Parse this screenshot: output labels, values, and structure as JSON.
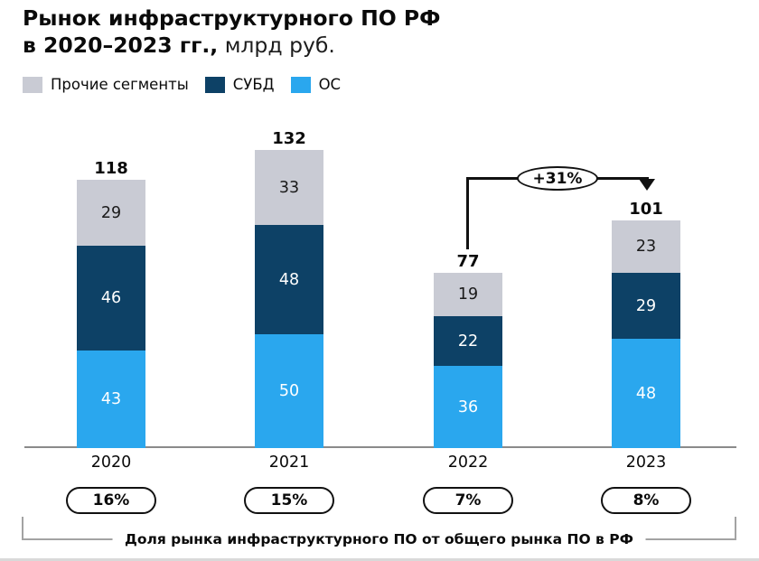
{
  "title": {
    "line1": "Рынок инфраструктурного ПО РФ",
    "line2_bold": "в 2020–2023 гг.,",
    "line2_rest": " млрд руб."
  },
  "legend": {
    "items": [
      {
        "label": "Прочие сегменты",
        "color": "#c9cbd4"
      },
      {
        "label": "СУБД",
        "color": "#0d4166"
      },
      {
        "label": "ОС",
        "color": "#2aa7ee"
      }
    ]
  },
  "chart_data": {
    "type": "bar",
    "stacked": true,
    "title": "Рынок инфраструктурного ПО РФ в 2020–2023 гг., млрд руб.",
    "unit": "млрд руб.",
    "categories": [
      "2020",
      "2021",
      "2022",
      "2023"
    ],
    "series": [
      {
        "name": "ОС",
        "color": "#2aa7ee",
        "text_color": "#ffffff",
        "values": [
          43,
          50,
          36,
          48
        ]
      },
      {
        "name": "СУБД",
        "color": "#0d4166",
        "text_color": "#ffffff",
        "values": [
          46,
          48,
          22,
          29
        ]
      },
      {
        "name": "Прочие сегменты",
        "color": "#c9cbd4",
        "text_color": "#1a1a1a",
        "values": [
          29,
          33,
          19,
          23
        ]
      }
    ],
    "totals": [
      118,
      132,
      77,
      101
    ],
    "share_labels": [
      "16%",
      "15%",
      "7%",
      "8%"
    ],
    "annotation": {
      "text": "+31%",
      "from_category": "2022",
      "to_category": "2023"
    },
    "footer_label": "Доля рынка инфраструктурного ПО от общего рынка ПО в РФ",
    "legend_position": "top",
    "grid": false,
    "ylim": [
      0,
      140
    ]
  }
}
